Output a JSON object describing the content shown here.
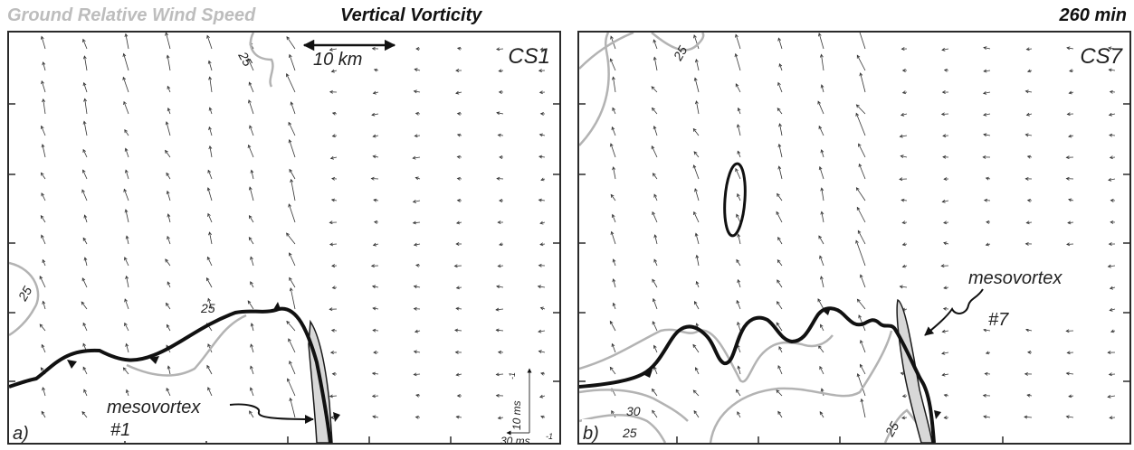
{
  "header": {
    "wind_title": "Ground Relative Wind Speed",
    "vorticity_title": "Vertical Vorticity",
    "time": "260 min"
  },
  "colors": {
    "wind_contour": "#b3b3b3",
    "vorticity_contour": "#111111",
    "mesovortex_fill": "#d8d8d8",
    "vectors": "#333333"
  },
  "panels": [
    {
      "id": "a",
      "label": "a)",
      "case": "CS1",
      "scale_bar": "10 km",
      "contour_labels": [
        "25",
        "25",
        "25"
      ],
      "mesovortex_label_line1": "mesovortex",
      "mesovortex_label_line2": "#1",
      "vector_scale_vertical": "10 ms",
      "vector_scale_horizontal": "30 ms",
      "vector_scale_exponent": "-1"
    },
    {
      "id": "b",
      "label": "b)",
      "case": "CS7",
      "contour_labels": [
        "25",
        "30",
        "25",
        "25"
      ],
      "mesovortex_label_line1": "mesovortex",
      "mesovortex_label_line2": "#7"
    }
  ]
}
